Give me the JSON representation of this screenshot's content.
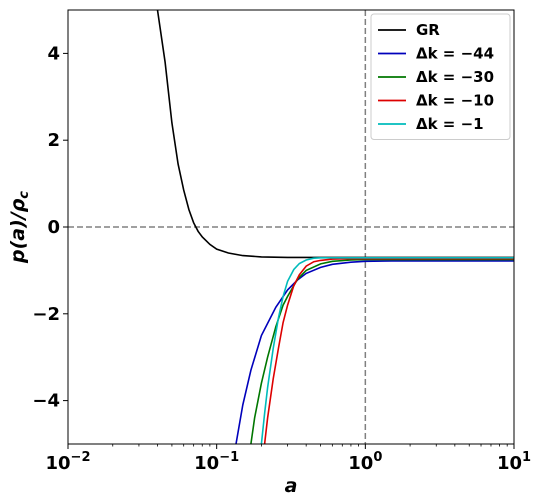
{
  "chart_data": {
    "type": "line",
    "xlabel": "a",
    "ylabel": "p(a)/ρ_c",
    "xscale": "log",
    "xlim": [
      0.01,
      10
    ],
    "ylim": [
      -5,
      5
    ],
    "x_ticks": [
      {
        "value": 0.01,
        "base": "10",
        "exp": "−2"
      },
      {
        "value": 0.1,
        "base": "10",
        "exp": "−1"
      },
      {
        "value": 1,
        "base": "10",
        "exp": "0"
      },
      {
        "value": 10,
        "base": "10",
        "exp": "1"
      }
    ],
    "y_ticks": [
      {
        "value": -4,
        "label": "−4"
      },
      {
        "value": -2,
        "label": "−2"
      },
      {
        "value": 0,
        "label": "0"
      },
      {
        "value": 2,
        "label": "2"
      },
      {
        "value": 4,
        "label": "4"
      }
    ],
    "reference_lines": [
      {
        "axis": "y",
        "value": 0,
        "style": "dashed",
        "color": "#808080"
      },
      {
        "axis": "x",
        "value": 1,
        "style": "dashed",
        "color": "#808080"
      }
    ],
    "grid": false,
    "legend_position": "top-right",
    "series": [
      {
        "name": "GR",
        "color": "#000000",
        "x": [
          0.04,
          0.045,
          0.05,
          0.055,
          0.06,
          0.065,
          0.07,
          0.075,
          0.08,
          0.09,
          0.1,
          0.12,
          0.15,
          0.2,
          0.3,
          0.5,
          1.0,
          2.0,
          5.0,
          10.0
        ],
        "y": [
          5.0,
          3.8,
          2.4,
          1.45,
          0.85,
          0.4,
          0.1,
          -0.1,
          -0.23,
          -0.4,
          -0.51,
          -0.6,
          -0.66,
          -0.69,
          -0.7,
          -0.7,
          -0.7,
          -0.7,
          -0.7,
          -0.7
        ]
      },
      {
        "name": "Δk = −44",
        "color": "#0000bb",
        "x": [
          0.135,
          0.15,
          0.17,
          0.2,
          0.25,
          0.3,
          0.35,
          0.4,
          0.5,
          0.6,
          0.8,
          1.0,
          1.5,
          2.0,
          5.0,
          10.0
        ],
        "y": [
          -5.0,
          -4.1,
          -3.3,
          -2.5,
          -1.85,
          -1.45,
          -1.22,
          -1.07,
          -0.93,
          -0.86,
          -0.81,
          -0.79,
          -0.78,
          -0.78,
          -0.78,
          -0.78
        ]
      },
      {
        "name": "Δk = −30",
        "color": "#007700",
        "x": [
          0.17,
          0.18,
          0.2,
          0.22,
          0.25,
          0.28,
          0.3,
          0.35,
          0.4,
          0.5,
          0.6,
          0.8,
          1.0,
          2.0,
          5.0,
          10.0
        ],
        "y": [
          -5.0,
          -4.4,
          -3.6,
          -3.0,
          -2.3,
          -1.8,
          -1.6,
          -1.2,
          -1.0,
          -0.85,
          -0.79,
          -0.76,
          -0.75,
          -0.75,
          -0.75,
          -0.75
        ]
      },
      {
        "name": "Δk = −10",
        "color": "#dd0000",
        "x": [
          0.21,
          0.22,
          0.24,
          0.26,
          0.28,
          0.3,
          0.33,
          0.36,
          0.4,
          0.45,
          0.5,
          0.6,
          0.8,
          1.0,
          2.0,
          5.0,
          10.0
        ],
        "y": [
          -5.0,
          -4.4,
          -3.5,
          -2.8,
          -2.2,
          -1.8,
          -1.35,
          -1.1,
          -0.9,
          -0.8,
          -0.77,
          -0.74,
          -0.73,
          -0.73,
          -0.73,
          -0.73,
          -0.73
        ]
      },
      {
        "name": "Δk = −1",
        "color": "#00bbbb",
        "x": [
          0.2,
          0.21,
          0.22,
          0.24,
          0.26,
          0.28,
          0.3,
          0.33,
          0.36,
          0.4,
          0.45,
          0.5,
          0.6,
          0.8,
          1.0,
          2.0,
          10.0
        ],
        "y": [
          -5.0,
          -4.3,
          -3.7,
          -2.8,
          -2.1,
          -1.6,
          -1.25,
          -0.98,
          -0.84,
          -0.76,
          -0.72,
          -0.71,
          -0.71,
          -0.71,
          -0.71,
          -0.71,
          -0.71
        ]
      }
    ]
  }
}
